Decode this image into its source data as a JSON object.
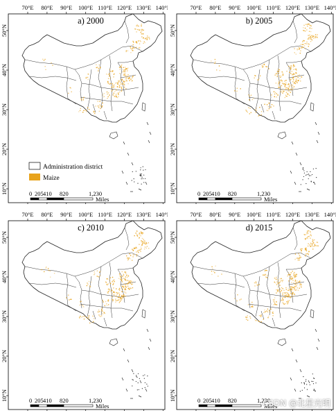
{
  "figure": {
    "lon_labels": [
      "70°E",
      "80°E",
      "90°E",
      "100°E",
      "110°E",
      "120°E",
      "130°E",
      "140°E"
    ],
    "lat_labels": [
      "50°N",
      "40°N",
      "30°N",
      "20°N",
      "10°N"
    ],
    "panels": [
      {
        "label": "a) 2000"
      },
      {
        "label": "b) 2005"
      },
      {
        "label": "c) 2010"
      },
      {
        "label": "d) 2015"
      }
    ],
    "legend": {
      "admin_label": "Administration district",
      "maize_label": "Maize",
      "admin_color": "#ffffff",
      "maize_color": "#e8a31c"
    },
    "scalebar": {
      "ticks": [
        "0",
        "205",
        "410",
        "820",
        "1,230"
      ],
      "unit": "Miles"
    }
  },
  "watermark": "CSDN @北星光明"
}
